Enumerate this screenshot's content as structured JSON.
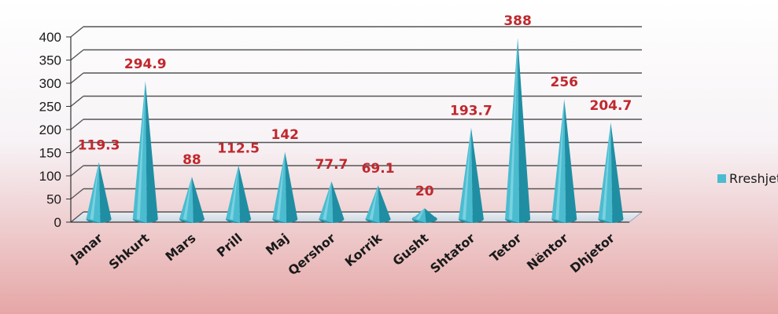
{
  "chart_data": {
    "type": "bar",
    "bar_shape": "cone",
    "title": "",
    "xlabel": "",
    "ylabel": "",
    "categories": [
      "Janar",
      "Shkurt",
      "Mars",
      "Prill",
      "Maj",
      "Qershor",
      "Korrik",
      "Gusht",
      "Shtator",
      "Tetor",
      "Nëntor",
      "Dhjetor"
    ],
    "series": [
      {
        "name": "Rreshjet",
        "values": [
          119.3,
          294.9,
          88,
          112.5,
          142,
          77.7,
          69.1,
          20,
          193.7,
          388,
          256,
          204.7
        ],
        "color": "#4bbcd0"
      }
    ],
    "ylim": [
      0,
      400
    ],
    "yticks": [
      0,
      50,
      100,
      150,
      200,
      250,
      300,
      350,
      400
    ],
    "grid": true,
    "legend_position": "right",
    "colors": {
      "bar": "#4bbcd0",
      "bar_dark": "#1f8ea3",
      "bar_light": "#8fdbe8",
      "data_label": "#c0282d",
      "gridline": "#555555",
      "background_top": "#ffffff",
      "background_bottom": "#e8a9a9"
    }
  }
}
